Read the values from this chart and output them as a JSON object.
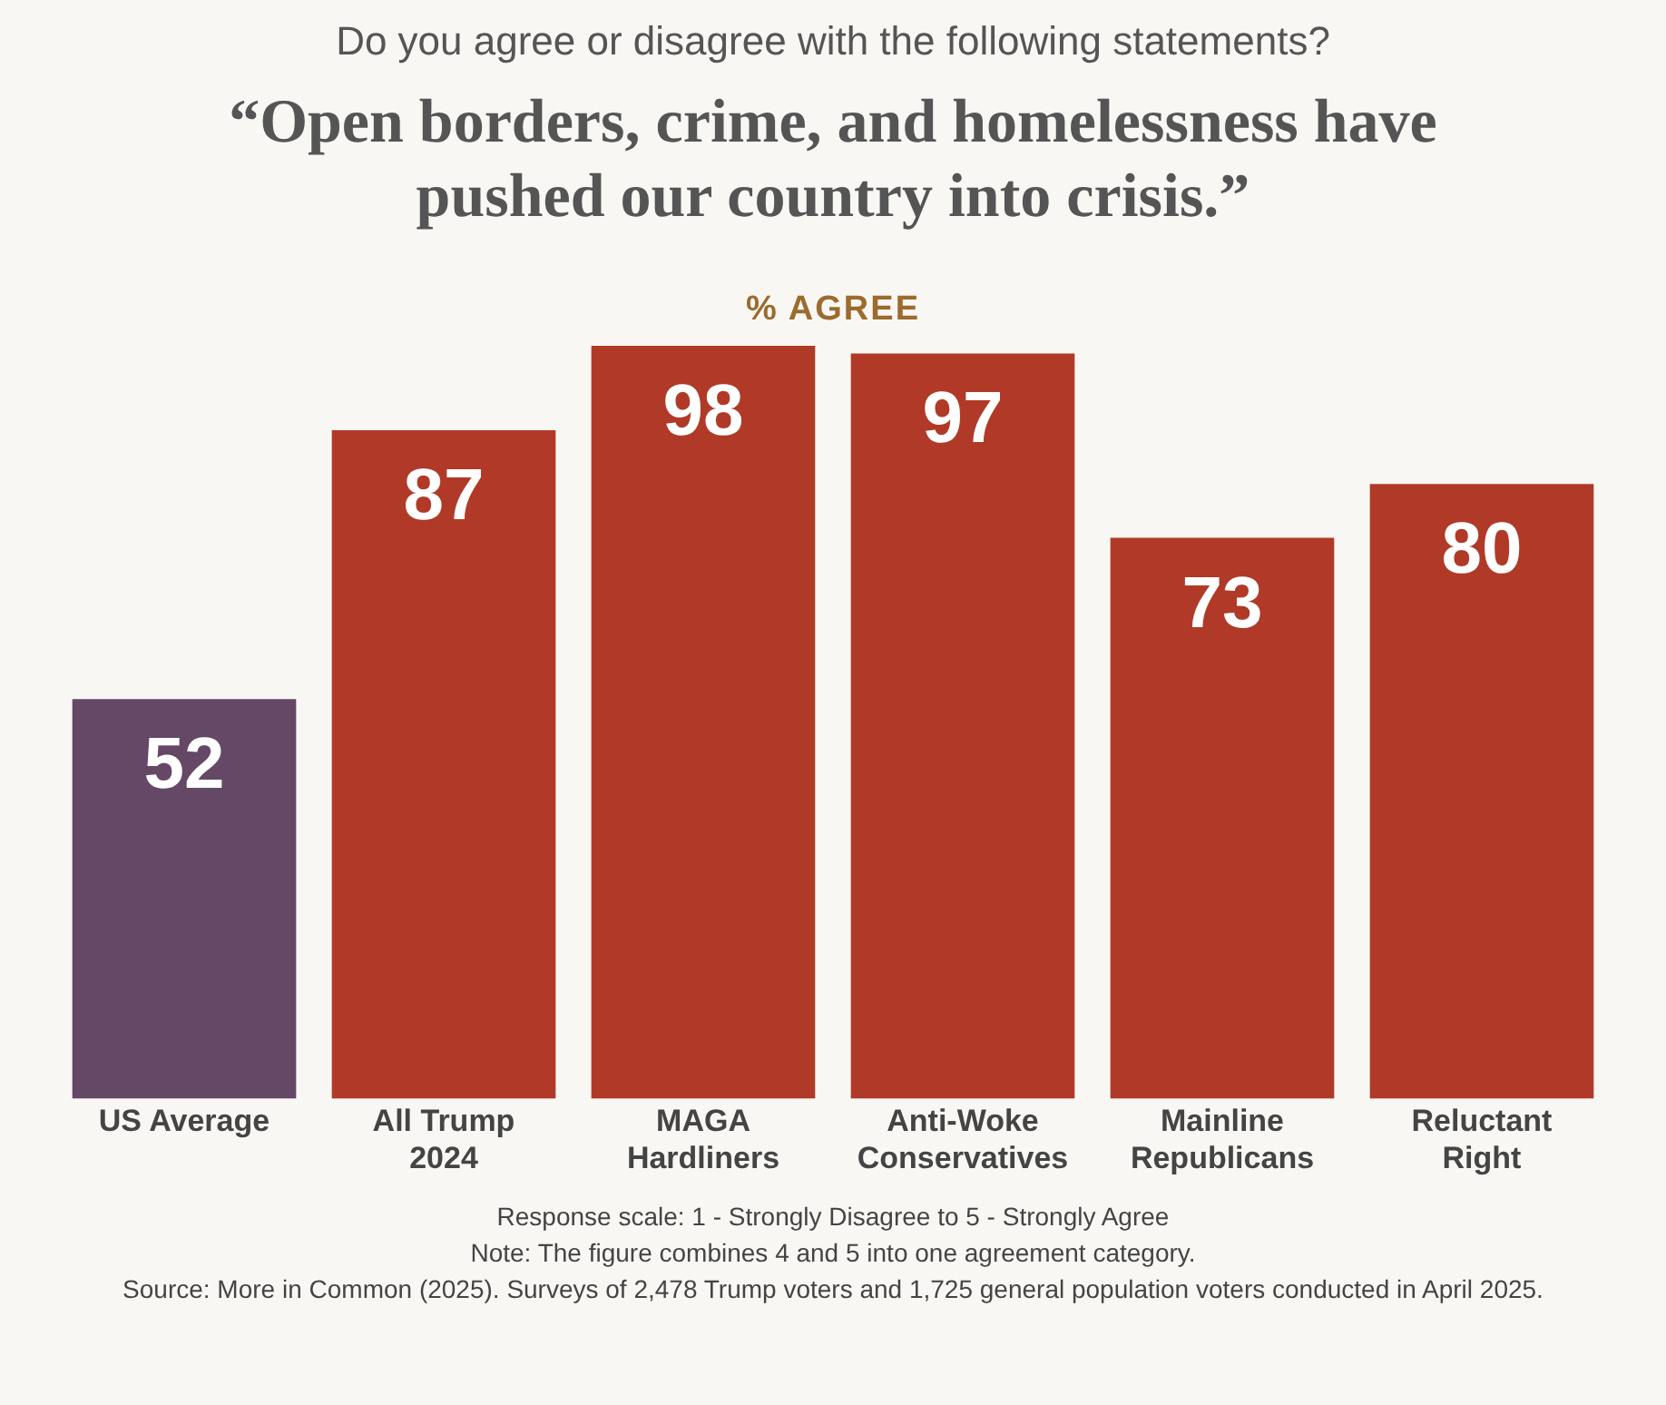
{
  "chart_data": {
    "type": "bar",
    "subtitle": "Do you agree or disagree with the following statements?",
    "title": "“Open borders, crime, and homelessness have pushed our country into crisis.”",
    "ylabel": "% AGREE",
    "categories": [
      "US Average",
      "All Trump 2024",
      "MAGA Hardliners",
      "Anti-Woke Conservatives",
      "Mainline Republicans",
      "Reluctant Right"
    ],
    "values": [
      52,
      87,
      98,
      97,
      73,
      80
    ],
    "colors": [
      "#654866",
      "#b03a27",
      "#b03a27",
      "#b03a27",
      "#b03a27",
      "#b03a27"
    ],
    "data_labels": true,
    "grid": false,
    "legend": false,
    "annotations": [
      "Response scale: 1 - Strongly Disagree to 5 - Strongly Agree",
      "Note: The figure combines 4 and 5 into one agreement category.",
      "Source: More in Common (2025). Surveys of 2,478 Trump voters and 1,725 general population voters conducted in April 2025."
    ]
  }
}
